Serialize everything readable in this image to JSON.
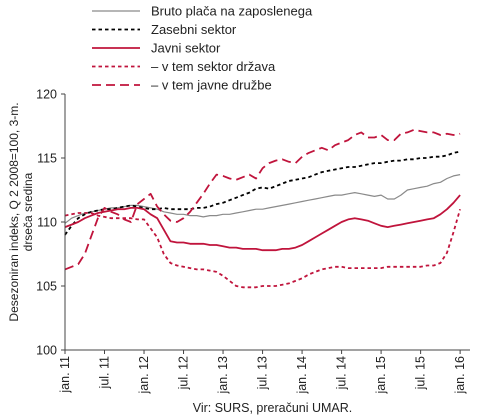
{
  "chart_data": {
    "type": "line",
    "ylabel": "Desezoniran indeks, Q 2 2008=100, 3-m. drseča sredina",
    "ylim": [
      100,
      120
    ],
    "yticks": [
      100,
      105,
      110,
      115,
      120
    ],
    "xlim": [
      0,
      61.5
    ],
    "x_tick_positions": [
      0,
      6,
      12,
      18,
      24,
      30,
      36,
      42,
      48,
      54,
      60
    ],
    "x_tick_labels": [
      "jan. 11",
      "jul. 11",
      "jan. 12",
      "jul. 12",
      "jan. 13",
      "jul. 13",
      "jan. 14",
      "jul. 14",
      "jan. 15",
      "jul. 15",
      "jan. 16"
    ],
    "source_note": "Vir: SURS, preračuni UMAR.",
    "legend_position": "top-center",
    "series": [
      {
        "name": "Bruto plača na zaposlenega",
        "color": "#8a8a8a",
        "dash": "solid",
        "values": [
          109.9,
          110.3,
          110.5,
          110.7,
          110.8,
          110.9,
          111.0,
          111.1,
          111.1,
          111.2,
          111.3,
          111.3,
          111.2,
          111.1,
          111.0,
          110.8,
          110.7,
          110.6,
          110.6,
          110.5,
          110.5,
          110.4,
          110.5,
          110.5,
          110.6,
          110.6,
          110.7,
          110.8,
          110.9,
          111.0,
          111.0,
          111.1,
          111.2,
          111.3,
          111.4,
          111.5,
          111.6,
          111.7,
          111.8,
          111.9,
          112.0,
          112.1,
          112.1,
          112.2,
          112.3,
          112.2,
          112.1,
          112.0,
          112.1,
          111.8,
          111.8,
          112.1,
          112.5,
          112.6,
          112.7,
          112.8,
          113.0,
          113.1,
          113.4,
          113.6,
          113.7
        ]
      },
      {
        "name": "Zasebni sektor",
        "color": "#000000",
        "dash": "short",
        "values": [
          109.0,
          109.7,
          110.3,
          110.6,
          110.8,
          110.9,
          111.0,
          111.0,
          111.1,
          111.2,
          111.3,
          111.2,
          111.1,
          111.0,
          111.0,
          111.1,
          111.0,
          111.0,
          111.0,
          111.0,
          111.1,
          111.1,
          111.2,
          111.4,
          111.5,
          111.7,
          111.9,
          112.1,
          112.3,
          112.6,
          112.7,
          112.6,
          112.8,
          113.0,
          113.2,
          113.3,
          113.4,
          113.5,
          113.7,
          113.9,
          114.0,
          114.1,
          114.2,
          114.3,
          114.3,
          114.4,
          114.5,
          114.6,
          114.6,
          114.7,
          114.8,
          114.8,
          114.9,
          114.9,
          115.0,
          115.0,
          115.1,
          115.1,
          115.2,
          115.4,
          115.5
        ]
      },
      {
        "name": "Javni sektor",
        "color": "#c0143c",
        "dash": "solid",
        "values": [
          109.6,
          109.8,
          110.0,
          110.3,
          110.5,
          110.7,
          110.8,
          110.9,
          111.0,
          111.0,
          111.1,
          111.1,
          111.0,
          110.6,
          110.3,
          109.4,
          108.5,
          108.4,
          108.4,
          108.3,
          108.3,
          108.3,
          108.2,
          108.2,
          108.1,
          108.0,
          108.0,
          107.9,
          107.9,
          107.9,
          107.8,
          107.8,
          107.8,
          107.9,
          107.9,
          108.0,
          108.2,
          108.5,
          108.8,
          109.1,
          109.4,
          109.7,
          110.0,
          110.2,
          110.3,
          110.2,
          110.1,
          109.9,
          109.7,
          109.6,
          109.7,
          109.8,
          109.9,
          110.0,
          110.1,
          110.2,
          110.3,
          110.6,
          111.0,
          111.5,
          112.1
        ]
      },
      {
        "name": "– v tem sektor država",
        "color": "#c0143c",
        "dash": "short",
        "values": [
          110.5,
          110.6,
          110.7,
          110.7,
          110.7,
          110.5,
          110.4,
          110.3,
          110.3,
          110.3,
          110.3,
          110.2,
          110.2,
          109.5,
          108.8,
          107.5,
          106.8,
          106.6,
          106.5,
          106.4,
          106.3,
          106.3,
          106.2,
          106.1,
          105.8,
          105.4,
          105.0,
          104.9,
          104.9,
          104.9,
          105.0,
          105.0,
          105.0,
          105.1,
          105.2,
          105.4,
          105.6,
          105.9,
          106.1,
          106.3,
          106.4,
          106.5,
          106.5,
          106.4,
          106.4,
          106.4,
          106.4,
          106.4,
          106.4,
          106.5,
          106.5,
          106.5,
          106.5,
          106.5,
          106.5,
          106.6,
          106.6,
          106.8,
          107.6,
          109.2,
          111.0
        ]
      },
      {
        "name": "– v tem javne družbe",
        "color": "#c0143c",
        "dash": "long",
        "values": [
          106.3,
          106.5,
          106.7,
          107.5,
          108.9,
          110.3,
          111.1,
          110.8,
          110.6,
          110.2,
          110.0,
          111.4,
          111.8,
          112.2,
          111.2,
          110.6,
          110.1,
          110.0,
          110.3,
          110.8,
          111.5,
          112.2,
          113.0,
          113.7,
          113.6,
          113.4,
          113.3,
          113.5,
          113.7,
          113.4,
          114.2,
          114.6,
          114.8,
          114.9,
          114.7,
          114.6,
          115.1,
          115.4,
          115.6,
          115.8,
          115.6,
          116.0,
          116.2,
          116.4,
          116.8,
          117.0,
          116.6,
          116.6,
          116.8,
          116.4,
          116.4,
          116.9,
          117.0,
          117.2,
          117.1,
          117.0,
          117.0,
          116.8,
          116.9,
          116.8,
          116.9
        ]
      }
    ]
  }
}
